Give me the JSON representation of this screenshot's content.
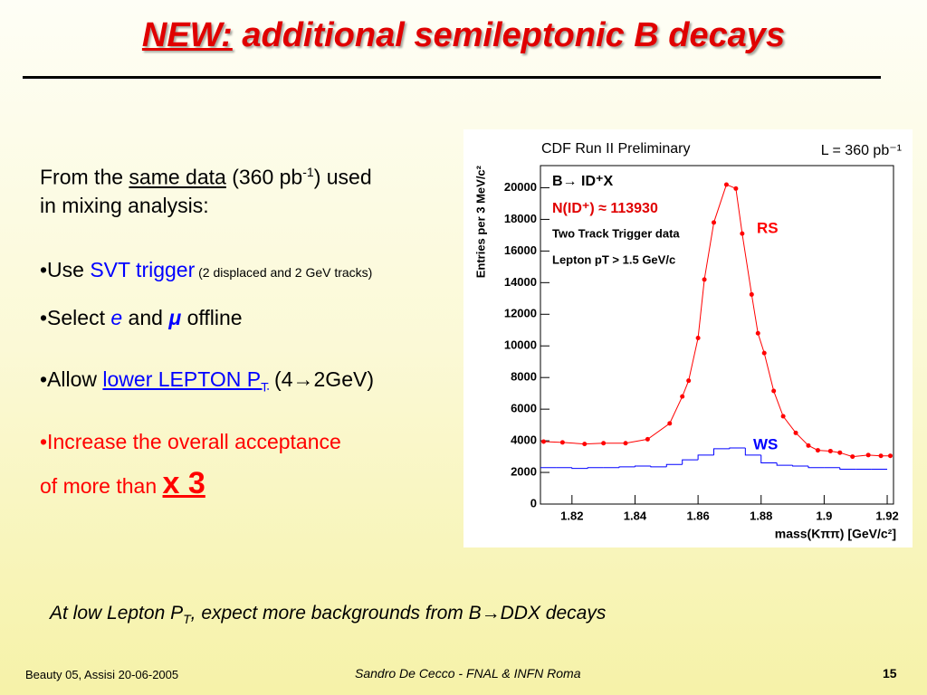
{
  "slide": {
    "title": {
      "highlight": "NEW:",
      "rest": " additional semileptonic B decays"
    },
    "bullets": [
      {
        "parts": [
          "From the ",
          "same data",
          " (360 pb",
          "-1",
          ") used",
          "in mixing analysis:"
        ]
      },
      {
        "parts": [
          "•Use ",
          "SVT trigger",
          " (2 displaced and 2 GeV tracks)"
        ]
      },
      {
        "parts": [
          "•Select ",
          "e",
          " and ",
          "μ",
          " offline"
        ]
      },
      {
        "parts": [
          "•Allow ",
          "lower LEPTON P",
          "T",
          " (4→2GeV)"
        ]
      },
      {
        "parts": [
          "•Increase the overall acceptance",
          "of more than ",
          "x 3"
        ]
      }
    ],
    "note": {
      "parts": [
        "At low Lepton P",
        "T",
        ", expect more backgrounds from B→DDX decays"
      ]
    },
    "footer": {
      "left": "Beauty 05, Assisi 20-06-2005",
      "center": "Sandro De Cecco - FNAL & INFN Roma",
      "page": 15
    }
  },
  "chart_data": {
    "type": "scatter",
    "title": "CDF Run II Preliminary",
    "subtitle": "L = 360 pb⁻¹",
    "x_label": "mass(Kππ) [GeV/c²]",
    "y_label": "Entries per 3 MeV/c²",
    "annotations": [
      "B→ ID⁺X",
      "N(ID⁺) ≈ 113930",
      "Two Track Trigger data",
      "Lepton pT > 1.5 GeV/c"
    ],
    "xlim": [
      1.81,
      1.922
    ],
    "ylim": [
      0,
      21400
    ],
    "xticks": [
      1.82,
      1.84,
      1.86,
      1.88,
      1.9,
      1.92
    ],
    "yticks": [
      0,
      2000,
      4000,
      6000,
      8000,
      10000,
      12000,
      14000,
      16000,
      18000,
      20000
    ],
    "series": [
      {
        "name": "RS",
        "type": "scatter",
        "color": "#ff0000",
        "x": [
          1.811,
          1.817,
          1.824,
          1.83,
          1.837,
          1.844,
          1.851,
          1.855,
          1.857,
          1.86,
          1.862,
          1.865,
          1.869,
          1.872,
          1.874,
          1.877,
          1.879,
          1.881,
          1.884,
          1.887,
          1.891,
          1.895,
          1.898,
          1.902,
          1.905,
          1.909,
          1.914,
          1.918,
          1.921
        ],
        "values": [
          3950,
          3900,
          3800,
          3850,
          3850,
          4100,
          5100,
          6800,
          7800,
          10500,
          14200,
          17800,
          20200,
          19950,
          17100,
          13250,
          10800,
          9550,
          7150,
          5550,
          4500,
          3700,
          3400,
          3350,
          3250,
          3000,
          3100,
          3050,
          3050
        ]
      },
      {
        "name": "WS",
        "type": "histogram",
        "color": "#0000ff",
        "bins": [
          1.81,
          1.815,
          1.82,
          1.825,
          1.83,
          1.835,
          1.84,
          1.845,
          1.85,
          1.855,
          1.86,
          1.865,
          1.87,
          1.875,
          1.88,
          1.885,
          1.89,
          1.895,
          1.9,
          1.905,
          1.91,
          1.915,
          1.92
        ],
        "values": [
          2300,
          2300,
          2250,
          2300,
          2300,
          2350,
          2400,
          2350,
          2500,
          2800,
          3100,
          3500,
          3550,
          3100,
          2600,
          2450,
          2400,
          2300,
          2300,
          2200,
          2200,
          2200
        ]
      }
    ]
  }
}
